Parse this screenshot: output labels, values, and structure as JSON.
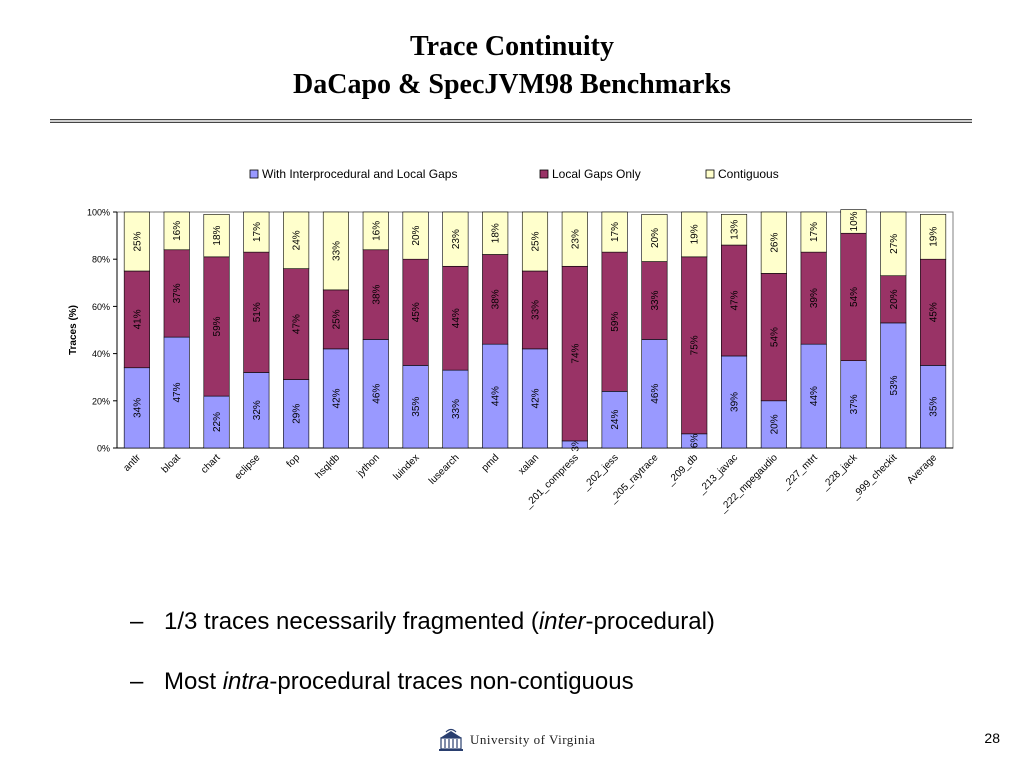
{
  "slide": {
    "title_line1": "Trace Continuity",
    "title_line2": "DaCapo & SpecJVM98 Benchmarks",
    "page_number": "28",
    "logo_text": "University of Virginia"
  },
  "bullets": [
    {
      "dash": "–",
      "pre": "1/3 traces necessarily fragmented (",
      "em": "inter",
      "post": "-procedural)"
    },
    {
      "dash": "–",
      "pre": "Most ",
      "em": "intra",
      "post": "-procedural traces non-contiguous"
    }
  ],
  "colors": {
    "interprocedural": "#9999ff",
    "local": "#993366",
    "contiguous": "#ffffcc",
    "outline": "#000000"
  },
  "chart_data": {
    "type": "bar",
    "stacked": true,
    "title": "",
    "xlabel": "",
    "ylabel": "Traces (%)",
    "ylim": [
      0,
      100
    ],
    "yticks": [
      "0%",
      "20%",
      "40%",
      "60%",
      "80%",
      "100%"
    ],
    "legend_position": "top",
    "categories": [
      "antlr",
      "bloat",
      "chart",
      "eclipse",
      "fop",
      "hsqldb",
      "jython",
      "luindex",
      "lusearch",
      "pmd",
      "xalan",
      "_201_compress",
      "_202_jess",
      "_205_raytrace",
      "_209_db",
      "_213_javac",
      "_222_mpegaudio",
      "_227_mtrt",
      "_228_jack",
      "_999_checkit",
      "Average"
    ],
    "series": [
      {
        "name": "With Interprocedural and Local Gaps",
        "values": [
          34,
          47,
          22,
          32,
          29,
          42,
          46,
          35,
          33,
          44,
          42,
          3,
          24,
          46,
          6,
          39,
          20,
          44,
          37,
          53,
          35
        ]
      },
      {
        "name": "Local Gaps Only",
        "values": [
          41,
          37,
          59,
          51,
          47,
          25,
          38,
          45,
          44,
          38,
          33,
          74,
          59,
          33,
          75,
          47,
          54,
          39,
          54,
          20,
          45
        ]
      },
      {
        "name": "Contiguous",
        "values": [
          25,
          16,
          18,
          17,
          24,
          33,
          16,
          20,
          23,
          18,
          25,
          23,
          17,
          20,
          19,
          13,
          26,
          17,
          10,
          27,
          19
        ]
      }
    ]
  }
}
